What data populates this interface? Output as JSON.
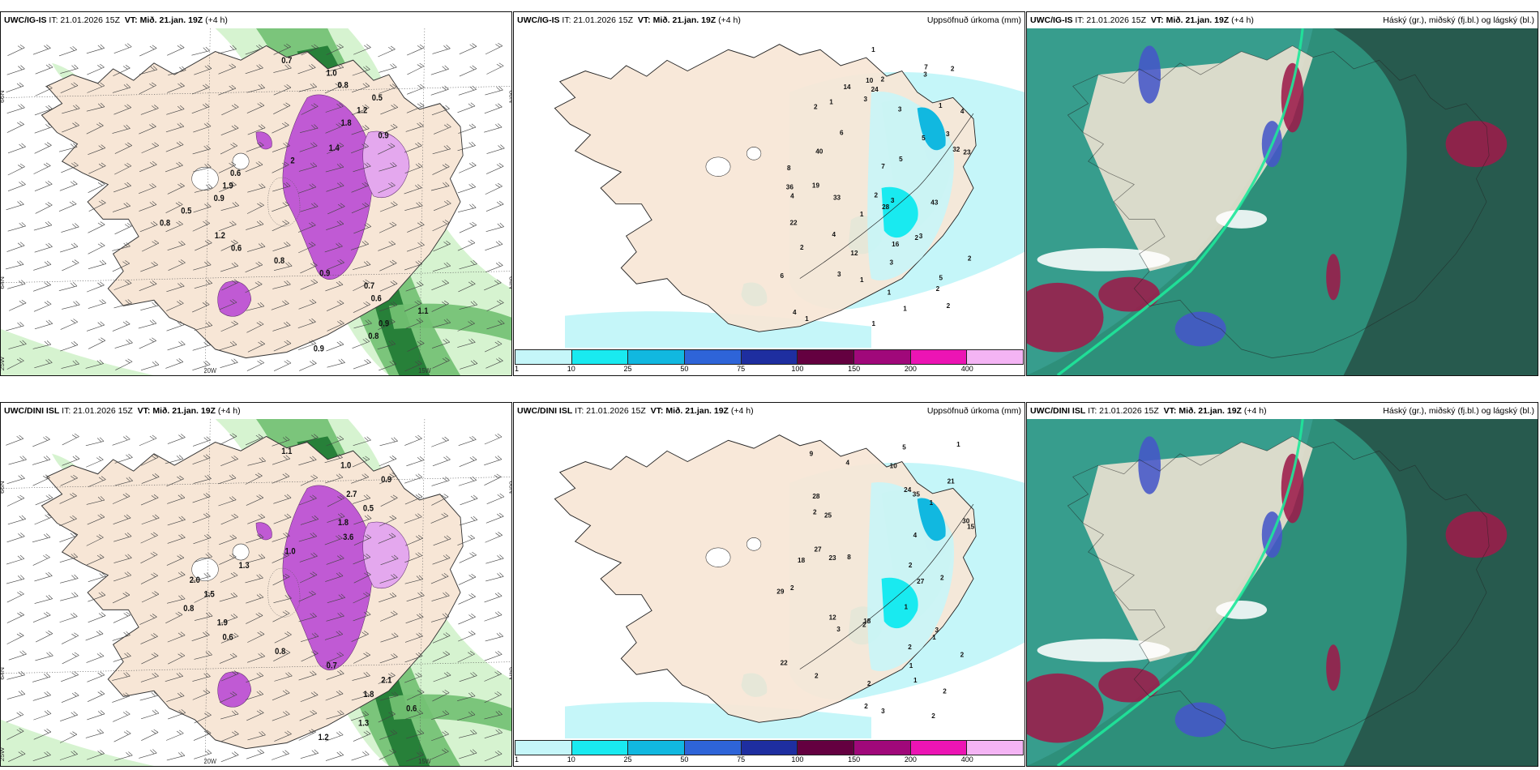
{
  "rows": [
    {
      "model_label": "UWC/IG-IS",
      "panels": [
        {
          "kind": "wind",
          "it": "IT: 21.01.2026 15Z",
          "vt_label": "VT:",
          "vt_value": "Mið. 21.jan. 19Z",
          "lead": "(+4 h)",
          "right": "",
          "lat_labels": [
            "66N",
            "64N",
            "25W",
            "66N",
            "64N"
          ],
          "lon_labels": [
            "20W",
            "15W"
          ],
          "values": [
            "0.7",
            "1.0",
            "0.8",
            "0.5",
            "1.2",
            "1.8",
            "0.9",
            "1.4",
            "2",
            "0.6",
            "1.9",
            "0.9",
            "0.5",
            "0.8",
            "1.2",
            "0.6",
            "0.8",
            "0.9",
            "0.7",
            "0.6",
            "1.1",
            "0.9",
            "0.8",
            "0.9"
          ]
        },
        {
          "kind": "precip",
          "it": "IT: 21.01.2026 15Z",
          "vt_label": "VT:",
          "vt_value": "Mið. 21.jan. 19Z",
          "lead": "(+4 h)",
          "right": "Uppsöfnuð úrkoma (mm)",
          "values": [
            "1",
            "2",
            "7",
            "2",
            "3",
            "10",
            "14",
            "24",
            "1",
            "1",
            "3",
            "2",
            "3",
            "4",
            "3",
            "5",
            "6",
            "40",
            "23",
            "32",
            "7",
            "5",
            "8",
            "19",
            "36",
            "4",
            "2",
            "3",
            "33",
            "43",
            "28",
            "22",
            "1",
            "4",
            "3",
            "2",
            "2",
            "16",
            "2",
            "12",
            "6",
            "3",
            "1",
            "3",
            "5",
            "1",
            "2",
            "4",
            "1",
            "2",
            "1",
            "1"
          ],
          "colorbar": [
            "1",
            "10",
            "25",
            "50",
            "75",
            "100",
            "150",
            "200",
            "400"
          ]
        },
        {
          "kind": "cloud",
          "it": "IT: 21.01.2026 15Z",
          "vt_label": "VT:",
          "vt_value": "Mið. 21.jan. 19Z",
          "lead": "(+4 h)",
          "right": "Háský (gr.), miðský (fj.bl.) og lágský (bl.)"
        }
      ]
    },
    {
      "model_label": "UWC/DINI ISL",
      "panels": [
        {
          "kind": "wind",
          "it": "IT: 21.01.2026 15Z",
          "vt_label": "VT:",
          "vt_value": "Mið. 21.jan. 19Z",
          "lead": "(+4 h)",
          "right": "",
          "lat_labels": [
            "66N",
            "64N",
            "25W",
            "66N",
            "64N"
          ],
          "lon_labels": [
            "20W",
            "15W"
          ],
          "values": [
            "1.1",
            "1.0",
            "0.9",
            "2.7",
            "0.5",
            "1.8",
            "3.6",
            "1.0",
            "1.3",
            "2.0",
            "1.5",
            "0.8",
            "1.9",
            "0.6",
            "0.8",
            "0.7",
            "2.1",
            "1.8",
            "0.6",
            "1.3",
            "1.2"
          ]
        },
        {
          "kind": "precip",
          "it": "IT: 21.01.2026 15Z",
          "vt_label": "VT:",
          "vt_value": "Mið. 21.jan. 19Z",
          "lead": "(+4 h)",
          "right": "Uppsöfnuð úrkoma (mm)",
          "values": [
            "1",
            "5",
            "9",
            "4",
            "10",
            "21",
            "24",
            "28",
            "35",
            "2",
            "1",
            "30",
            "25",
            "4",
            "15",
            "27",
            "23",
            "18",
            "8",
            "2",
            "2",
            "2",
            "27",
            "29",
            "1",
            "12",
            "2",
            "18",
            "3",
            "3",
            "1",
            "2",
            "2",
            "22",
            "2",
            "1",
            "2",
            "1",
            "2",
            "2",
            "3",
            "2"
          ],
          "colorbar": [
            "1",
            "10",
            "25",
            "50",
            "75",
            "100",
            "150",
            "200",
            "400"
          ]
        },
        {
          "kind": "cloud",
          "it": "IT: 21.01.2026 15Z",
          "vt_label": "VT:",
          "vt_value": "Mið. 21.jan. 19Z",
          "lead": "(+4 h)",
          "right": "Háský (gr.), miðský (fj.bl.) og lágský (bl.)"
        }
      ]
    }
  ],
  "colors": {
    "land": "#f7e6d6",
    "sea_white": "#ffffff",
    "precip_bins": [
      "#c5f6f9",
      "#19eaf0",
      "#11b8e0",
      "#2e64d8",
      "#1e2ea0",
      "#640040",
      "#a0087a",
      "#ec14b4",
      "#f4b4f4"
    ],
    "cloud_low": "#2e8f7a",
    "cloud_dark": "#275a4e",
    "cloud_high_red": "#9c1b4a",
    "cloud_mid_blue": "#4556c8",
    "green_light": "#d2f2cc",
    "green_mid": "#73c173",
    "green_dark": "#1f7a33",
    "purple": "#c05ad4",
    "purple_light": "#e4a8ee"
  }
}
